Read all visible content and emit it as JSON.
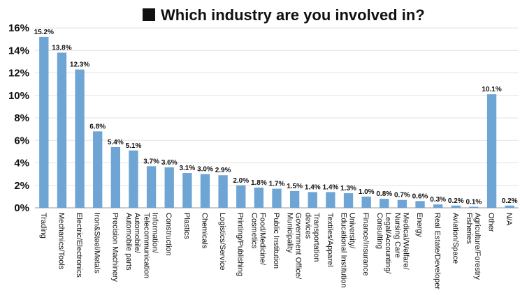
{
  "chart_data": {
    "type": "bar",
    "title": "Which industry are you involved in?",
    "xlabel": "",
    "ylabel": "",
    "ylim": [
      0,
      16
    ],
    "y_ticks": [
      "0%",
      "2%",
      "4%",
      "6%",
      "8%",
      "10%",
      "12%",
      "14%",
      "16%"
    ],
    "bar_color": "#6fa5d4",
    "grid": true,
    "legend": "none",
    "categories": [
      "Trading",
      "Mechanics/Tools",
      "Electric/Electronics",
      "Iron&Steel/Metals",
      "Precision Machinery",
      "Automobile/\nAutomobile parts",
      "Information/\nTelecommunication",
      "Construction",
      "Plastics",
      "Chemicals",
      "Logistics/Service",
      "Printing/Publishing",
      "Food/Medicine/\nCosmetics",
      "Public Institution",
      "Government Office/\nMunicipality",
      "Transportation\ndevices",
      "Textiles/Apparel",
      "University/\nEducational Institution",
      "Finance/Insurance",
      "Legal/Accounting/\nConsulting",
      "Medical/Welfare/\nNursing Care",
      "Energy",
      "Real Estate/Developer",
      "Aviation/Space",
      "Agriculture/Forestry\nFisheries",
      "Other",
      "N/A"
    ],
    "values": [
      15.2,
      13.8,
      12.3,
      6.8,
      5.4,
      5.1,
      3.7,
      3.6,
      3.1,
      3.0,
      2.9,
      2.0,
      1.8,
      1.7,
      1.5,
      1.4,
      1.4,
      1.3,
      1.0,
      0.8,
      0.7,
      0.6,
      0.3,
      0.2,
      0.1,
      10.1,
      0.2
    ],
    "data_labels": [
      "15.2%",
      "13.8%",
      "12.3%",
      "6.8%",
      "5.4%",
      "5.1%",
      "3.7%",
      "3.6%",
      "3.1%",
      "3.0%",
      "2.9%",
      "2.0%",
      "1.8%",
      "1.7%",
      "1.5%",
      "1.4%",
      "1.4%",
      "1.3%",
      "1.0%",
      "0.8%",
      "0.7%",
      "0.6%",
      "0.3%",
      "0.2%",
      "0.1%",
      "10.1%",
      "0.2%"
    ]
  }
}
